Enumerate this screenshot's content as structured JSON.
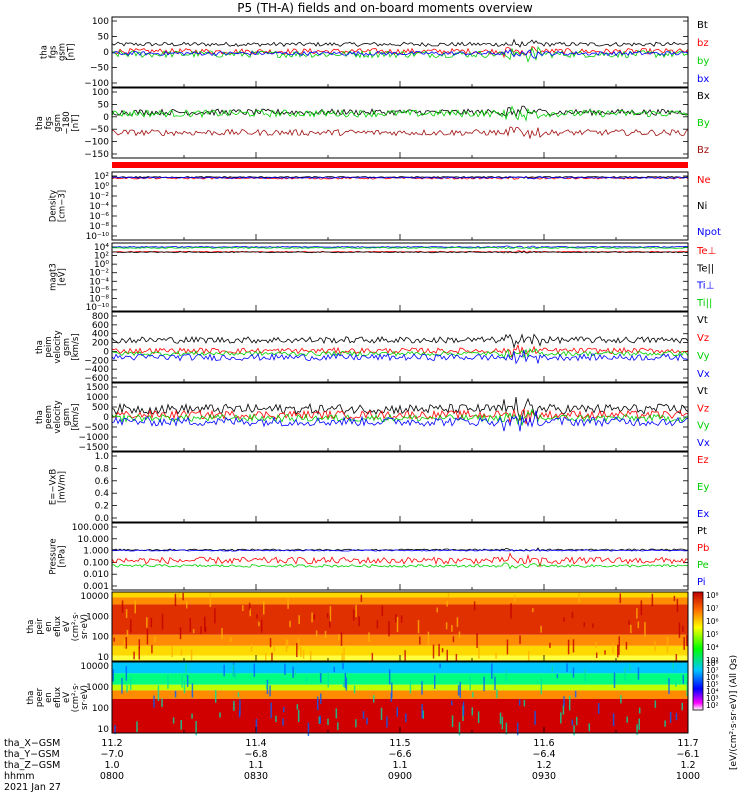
{
  "title": "P5 (TH-A) fields and on-board moments overview",
  "colors": {
    "black": "#000000",
    "red": "#ff0000",
    "green": "#00d000",
    "blue": "#0000ff",
    "darkred": "#a01010",
    "ssl_bar": "#ff0000"
  },
  "chart_data": [
    {
      "type": "line",
      "panel": "fgs_gsm",
      "ylabel": [
        "tha",
        "fgs",
        "gsm",
        "[nT]"
      ],
      "yticks": [
        "100",
        "50",
        "0",
        "−50",
        "−100"
      ],
      "ylim": [
        -100,
        100
      ],
      "legend": [
        {
          "label": "Bt",
          "color": "#000000"
        },
        {
          "label": "bz",
          "color": "#ff0000"
        },
        {
          "label": "by",
          "color": "#00d000"
        },
        {
          "label": "bx",
          "color": "#0000ff"
        }
      ],
      "series": [
        {
          "name": "Bt",
          "color": "#000000",
          "base": 22,
          "amp": 6
        },
        {
          "name": "bz",
          "color": "#ff0000",
          "base": 2,
          "amp": 8
        },
        {
          "name": "by",
          "color": "#00d000",
          "base": -6,
          "amp": 10
        },
        {
          "name": "bx",
          "color": "#0000ff",
          "base": -4,
          "amp": 6
        }
      ]
    },
    {
      "type": "line",
      "panel": "fgs_gse",
      "ylabel": [
        "tha",
        "fgs",
        "gsm",
        "−180",
        "[nT]"
      ],
      "yticks": [
        "100",
        "50",
        "0",
        "−50",
        "−100",
        "−150"
      ],
      "ylim": [
        -175,
        100
      ],
      "legend": [
        {
          "label": "Bx",
          "color": "#000000"
        },
        {
          "label": "By",
          "color": "#00d000"
        },
        {
          "label": "Bz",
          "color": "#a01010"
        }
      ],
      "series": [
        {
          "name": "Bx",
          "color": "#000000",
          "base": 5,
          "amp": 12
        },
        {
          "name": "By",
          "color": "#00d000",
          "base": 0,
          "amp": 14
        },
        {
          "name": "Bz",
          "color": "#a01010",
          "base": -75,
          "amp": 12
        }
      ]
    },
    {
      "type": "line",
      "panel": "density",
      "log": true,
      "ylabel": [
        "Density",
        "[cm−3]"
      ],
      "yticks": [
        "10²",
        "10⁰",
        "10⁻²",
        "10⁻⁴",
        "10⁻⁶",
        "10⁻⁸",
        "10⁻¹⁰"
      ],
      "ylim": [
        -10,
        2
      ],
      "legend": [
        {
          "label": "Ne",
          "color": "#ff0000"
        },
        {
          "label": "Ni",
          "color": "#000000"
        },
        {
          "label": "Npot",
          "color": "#0000ff"
        }
      ],
      "series": [
        {
          "name": "Ne",
          "color": "#ff0000",
          "base": 0.9,
          "amp": 0.15
        },
        {
          "name": "Ni",
          "color": "#000000",
          "base": 1.1,
          "amp": 0.1
        },
        {
          "name": "Npot",
          "color": "#0000ff",
          "base": 1.0,
          "amp": 0.12
        }
      ]
    },
    {
      "type": "line",
      "panel": "temperature",
      "log": true,
      "ylabel": [
        "magt3",
        "[eV]"
      ],
      "yticks": [
        "10⁴",
        "10²",
        "10⁰",
        "10⁻²",
        "10⁻⁴",
        "10⁻⁶",
        "10⁻⁸",
        "10⁻¹⁰"
      ],
      "ylim": [
        -10,
        4
      ],
      "legend": [
        {
          "label": "Te⊥",
          "color": "#ff0000"
        },
        {
          "label": "Te||",
          "color": "#000000"
        },
        {
          "label": "Ti⊥",
          "color": "#0000ff"
        },
        {
          "label": "Ti||",
          "color": "#00d000"
        }
      ],
      "series": [
        {
          "name": "Te⊥",
          "color": "#ff0000",
          "base": 2.2,
          "amp": 0.1
        },
        {
          "name": "Te||",
          "color": "#000000",
          "base": 2.1,
          "amp": 0.1
        },
        {
          "name": "Ti⊥",
          "color": "#0000ff",
          "base": 3.2,
          "amp": 0.1
        },
        {
          "name": "Ti||",
          "color": "#00d000",
          "base": 3.0,
          "amp": 0.1
        }
      ]
    },
    {
      "type": "line",
      "panel": "peim_velocity",
      "ylabel": [
        "tha",
        "peim",
        "velocity",
        "gsm",
        "[km/s]"
      ],
      "yticks": [
        "800",
        "600",
        "400",
        "200",
        "0",
        "−200",
        "−400",
        "−600"
      ],
      "ylim": [
        -650,
        850
      ],
      "legend": [
        {
          "label": "Vt",
          "color": "#000000"
        },
        {
          "label": "Vz",
          "color": "#ff0000"
        },
        {
          "label": "Vy",
          "color": "#00d000"
        },
        {
          "label": "Vx",
          "color": "#0000ff"
        }
      ],
      "series": [
        {
          "name": "Vt",
          "color": "#000000",
          "base": 250,
          "amp": 70
        },
        {
          "name": "Vz",
          "color": "#ff0000",
          "base": 20,
          "amp": 60
        },
        {
          "name": "Vy",
          "color": "#00d000",
          "base": -40,
          "amp": 50
        },
        {
          "name": "Vx",
          "color": "#0000ff",
          "base": -120,
          "amp": 70
        }
      ]
    },
    {
      "type": "line",
      "panel": "peem_velocity",
      "ylabel": [
        "tha",
        "peem",
        "velocity",
        "gsm",
        "[km/s]"
      ],
      "yticks": [
        "1500",
        "1000",
        "500",
        "0",
        "−500",
        "−1000",
        "−1500"
      ],
      "ylim": [
        -1500,
        1500
      ],
      "legend": [
        {
          "label": "Vt",
          "color": "#000000"
        },
        {
          "label": "Vz",
          "color": "#ff0000"
        },
        {
          "label": "Vy",
          "color": "#00d000"
        },
        {
          "label": "Vx",
          "color": "#0000ff"
        }
      ],
      "series": [
        {
          "name": "Vt",
          "color": "#000000",
          "base": 350,
          "amp": 220
        },
        {
          "name": "Vz",
          "color": "#ff0000",
          "base": 100,
          "amp": 180
        },
        {
          "name": "Vy",
          "color": "#00d000",
          "base": -50,
          "amp": 160
        },
        {
          "name": "Vx",
          "color": "#0000ff",
          "base": -200,
          "amp": 200
        }
      ]
    },
    {
      "type": "line",
      "panel": "efield",
      "ylabel": [
        "E=−VxB",
        "[mV/m]"
      ],
      "yticks": [
        "1.0",
        "0.8",
        "0.6",
        "0.4",
        "0.2",
        "0.0"
      ],
      "ylim": [
        0,
        1
      ],
      "legend": [
        {
          "label": "Ez",
          "color": "#ff0000"
        },
        {
          "label": "Ey",
          "color": "#00d000"
        },
        {
          "label": "Ex",
          "color": "#0000ff"
        }
      ],
      "series": []
    },
    {
      "type": "line",
      "panel": "pressure",
      "log": true,
      "ylabel": [
        "Pressure",
        "[nPa]"
      ],
      "yticks": [
        "100.000",
        "10.000",
        "1.000",
        "0.100",
        "0.010",
        "0.001"
      ],
      "ylim": [
        -3,
        2
      ],
      "legend": [
        {
          "label": "Pt",
          "color": "#000000"
        },
        {
          "label": "Pb",
          "color": "#ff0000"
        },
        {
          "label": "Pe",
          "color": "#00d000"
        },
        {
          "label": "Pi",
          "color": "#0000ff"
        }
      ],
      "series": [
        {
          "name": "Pt",
          "color": "#000000",
          "base": 0.0,
          "amp": 0.06
        },
        {
          "name": "Pi",
          "color": "#0000ff",
          "base": -0.05,
          "amp": 0.05
        },
        {
          "name": "Pb",
          "color": "#ff0000",
          "base": -0.8,
          "amp": 0.25
        },
        {
          "name": "Pe",
          "color": "#00d000",
          "base": -1.2,
          "amp": 0.1
        }
      ]
    },
    {
      "type": "heatmap",
      "panel": "peir_spectrogram",
      "ylabel": [
        "tha",
        "peir",
        "en",
        "eflux",
        "eV",
        "(cm²·s·",
        "sr·eV)"
      ],
      "yticks": [
        "10000",
        "1000",
        "100",
        "10"
      ],
      "ylim": [
        5,
        25000
      ]
    },
    {
      "type": "heatmap",
      "panel": "peer_spectrogram",
      "ylabel": [
        "tha",
        "peer",
        "en",
        "eflux",
        "eV",
        "(cm²·s·",
        "sr·eV)"
      ],
      "yticks": [
        "10000",
        "1000",
        "100",
        "10"
      ],
      "ylim": [
        5,
        25000
      ]
    }
  ],
  "colorbar": {
    "label": "[eV/(cm²·s·sr·eV)] (All Qs)",
    "ticks_top": [
      "10⁸",
      "10⁷",
      "10⁶",
      "10⁵",
      "10⁴",
      "10³"
    ],
    "ticks_bottom": [
      "10⁸",
      "10⁷",
      "10⁶",
      "10⁵",
      "10⁴",
      "10³",
      "10²"
    ]
  },
  "xaxis": {
    "rows": [
      {
        "label": "tha_X−GSM",
        "values": [
          "11.2",
          "11.4",
          "11.5",
          "11.6",
          "11.7"
        ]
      },
      {
        "label": "tha_Y−GSM",
        "values": [
          "−7.0",
          "−6.8",
          "−6.6",
          "−6.4",
          "−6.1"
        ]
      },
      {
        "label": "tha_Z−GSM",
        "values": [
          "1.0",
          "1.1",
          "1.1",
          "1.2",
          "1.2"
        ]
      },
      {
        "label": "hhmm",
        "values": [
          "0800",
          "0830",
          "0900",
          "0930",
          "1000"
        ]
      }
    ],
    "date": "2021 Jan 27"
  }
}
